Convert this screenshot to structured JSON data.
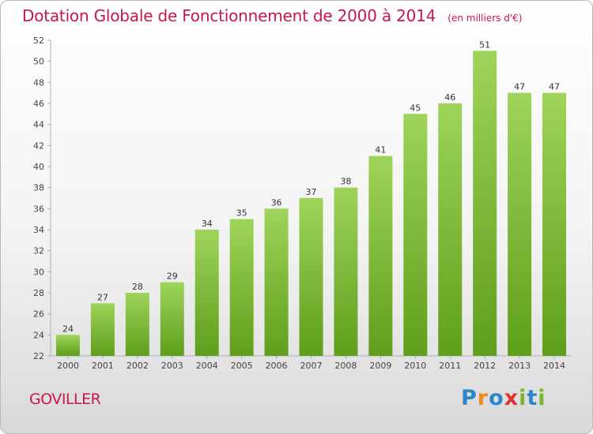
{
  "header": {
    "title": "Dotation Globale de Fonctionnement de 2000 à 2014",
    "unit": "(en milliers d'€)"
  },
  "footer": {
    "place": "GOVILLER",
    "logo": [
      "P",
      "r",
      "o",
      "x",
      "i",
      "t",
      "i"
    ]
  },
  "colors": {
    "title": "#c8174a",
    "bar_light": "#9ed45a",
    "bar_dark": "#5f9e1c",
    "logo": [
      "#2b87c8",
      "#f08a1c",
      "#2b87c8",
      "#e0322d",
      "#7bb52a",
      "#2b87c8",
      "#7bb52a"
    ]
  },
  "chart_data": {
    "type": "bar",
    "title": "Dotation Globale de Fonctionnement de 2000 à 2014",
    "xlabel": "",
    "ylabel": "",
    "categories": [
      "2000",
      "2001",
      "2002",
      "2003",
      "2004",
      "2005",
      "2006",
      "2007",
      "2008",
      "2009",
      "2010",
      "2011",
      "2012",
      "2013",
      "2014"
    ],
    "values": [
      24,
      27,
      28,
      29,
      34,
      35,
      36,
      37,
      38,
      41,
      45,
      46,
      51,
      47,
      47
    ],
    "ylim": [
      22,
      52
    ],
    "yticks": [
      22,
      24,
      26,
      28,
      30,
      32,
      34,
      36,
      38,
      40,
      42,
      44,
      46,
      48,
      50,
      52
    ],
    "grid": false
  }
}
